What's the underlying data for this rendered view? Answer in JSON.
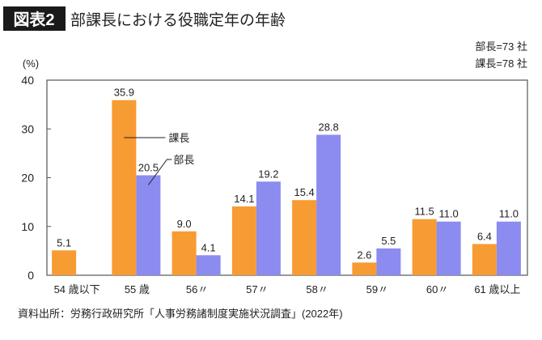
{
  "figure_label": "図表2",
  "chart_data": {
    "type": "bar",
    "title": "部課長における役職定年の年齢",
    "ylabel": "(%)",
    "ylim": [
      0,
      40
    ],
    "yticks": [
      0,
      10,
      20,
      30,
      40
    ],
    "categories": [
      "54 歳以下",
      "55 歳",
      "56〃",
      "57〃",
      "58〃",
      "59〃",
      "60〃",
      "61 歳以上"
    ],
    "series": [
      {
        "name": "課長",
        "color": "#F79B33",
        "values": [
          5.1,
          35.9,
          9.0,
          14.1,
          15.4,
          2.6,
          11.5,
          6.4
        ]
      },
      {
        "name": "部長",
        "color": "#8B8BF0",
        "values": [
          null,
          20.5,
          4.1,
          19.2,
          28.8,
          5.5,
          11.0,
          11.0
        ]
      }
    ],
    "sample_notes": [
      "部長=73 社",
      "課長=78 社"
    ],
    "legend": "inline callouts",
    "grid": false,
    "source": "資料出所：労務行政研究所「人事労務諸制度実施状況調査」(2022年)"
  }
}
